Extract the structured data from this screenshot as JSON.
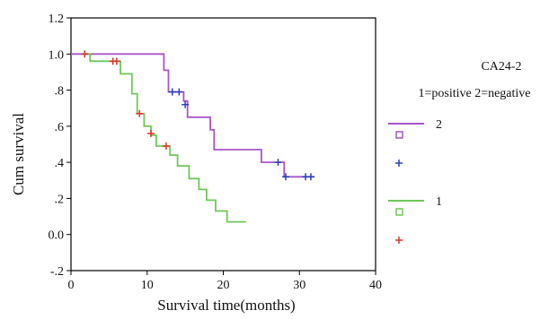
{
  "chart_data": {
    "type": "line",
    "subtype": "kaplan-meier step",
    "xlabel": "Survival time(months)",
    "ylabel": "Cum survival",
    "xlim": [
      0,
      40
    ],
    "ylim": [
      -0.2,
      1.2
    ],
    "xticks": [
      "0",
      "10",
      "20",
      "30",
      "40"
    ],
    "yticks": [
      "-.2",
      "0.0",
      ".2",
      ".4",
      ".6",
      ".8",
      "1.0",
      "1.2"
    ],
    "yticks_values": [
      -0.2,
      0.0,
      0.2,
      0.4,
      0.6,
      0.8,
      1.0,
      1.2
    ],
    "grid": false,
    "legend": {
      "title": "CA24-2",
      "subtitle": "1=positive 2=negative",
      "position": "right"
    },
    "series": [
      {
        "name": "2",
        "color": "#a855c8",
        "censor_color": "#2a3fbf",
        "legend_marker": "square",
        "legend_censor": "+",
        "steps": [
          [
            0,
            1.0
          ],
          [
            12.2,
            1.0
          ],
          [
            12.2,
            0.91
          ],
          [
            12.8,
            0.91
          ],
          [
            12.8,
            0.79
          ],
          [
            14.8,
            0.79
          ],
          [
            14.8,
            0.74
          ],
          [
            15.3,
            0.74
          ],
          [
            15.3,
            0.65
          ],
          [
            18.3,
            0.65
          ],
          [
            18.3,
            0.58
          ],
          [
            18.8,
            0.58
          ],
          [
            18.8,
            0.47
          ],
          [
            25.0,
            0.47
          ],
          [
            25.0,
            0.4
          ],
          [
            28.0,
            0.4
          ],
          [
            28.0,
            0.32
          ],
          [
            32.0,
            0.32
          ]
        ],
        "censored": [
          [
            13.3,
            0.79
          ],
          [
            14.2,
            0.79
          ],
          [
            15.0,
            0.72
          ],
          [
            27.2,
            0.4
          ],
          [
            28.2,
            0.32
          ],
          [
            30.8,
            0.32
          ],
          [
            31.5,
            0.32
          ]
        ]
      },
      {
        "name": "1",
        "color": "#6fc75a",
        "censor_color": "#e03030",
        "legend_marker": "square",
        "legend_censor": "+",
        "steps": [
          [
            1.5,
            1.0
          ],
          [
            2.5,
            1.0
          ],
          [
            2.5,
            0.96
          ],
          [
            6.5,
            0.96
          ],
          [
            6.5,
            0.89
          ],
          [
            8.0,
            0.89
          ],
          [
            8.0,
            0.78
          ],
          [
            8.7,
            0.78
          ],
          [
            8.7,
            0.67
          ],
          [
            9.6,
            0.67
          ],
          [
            9.6,
            0.6
          ],
          [
            10.5,
            0.6
          ],
          [
            10.5,
            0.55
          ],
          [
            11.2,
            0.55
          ],
          [
            11.2,
            0.49
          ],
          [
            13.0,
            0.49
          ],
          [
            13.0,
            0.44
          ],
          [
            14.0,
            0.44
          ],
          [
            14.0,
            0.38
          ],
          [
            15.5,
            0.38
          ],
          [
            15.5,
            0.31
          ],
          [
            16.8,
            0.31
          ],
          [
            16.8,
            0.25
          ],
          [
            17.8,
            0.25
          ],
          [
            17.8,
            0.19
          ],
          [
            19.0,
            0.19
          ],
          [
            19.0,
            0.13
          ],
          [
            20.5,
            0.13
          ],
          [
            20.5,
            0.07
          ],
          [
            23.0,
            0.07
          ]
        ],
        "censored": [
          [
            1.8,
            1.0
          ],
          [
            5.5,
            0.96
          ],
          [
            6.0,
            0.96
          ],
          [
            9.0,
            0.67
          ],
          [
            10.5,
            0.56
          ],
          [
            12.5,
            0.49
          ]
        ]
      }
    ]
  }
}
